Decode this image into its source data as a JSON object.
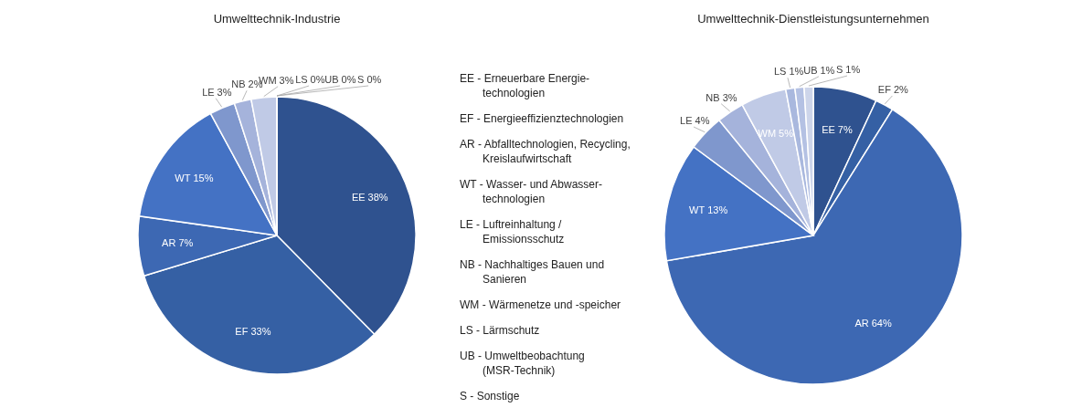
{
  "chart_data": [
    {
      "type": "pie",
      "title": "Umwelttechnik-Industrie",
      "categories": [
        "EE",
        "EF",
        "AR",
        "WT",
        "LE",
        "NB",
        "WM",
        "LS",
        "UB",
        "S"
      ],
      "values": [
        38,
        33,
        7,
        15,
        3,
        2,
        3,
        0,
        0,
        0
      ],
      "colors": [
        "#2f528f",
        "#3560a4",
        "#3d68b3",
        "#4472c4",
        "#7f97cd",
        "#a5b3db",
        "#c0cae6",
        "#a9b8de",
        "#b4c1e3",
        "#cdd5ea"
      ],
      "value_labels": [
        "38%",
        "33%",
        "7%",
        "15%",
        "3%",
        "2%",
        "3%",
        "0%",
        "0%",
        "0%"
      ]
    },
    {
      "type": "other",
      "annotations": [
        "EE - Erneuerbare Energie-\ntechnologien",
        "EF - Energieeffizienztechnologien",
        "AR - Abfalltechnologien, Recycling,\nKreislaufwirtschaft",
        "WT - Wasser- und Abwasser-\ntechnologien",
        "LE - Luftreinhaltung /\nEmissionsschutz",
        "NB - Nachhaltiges Bauen und\nSanieren",
        "WM - Wärmenetze und -speicher",
        "LS - Lärmschutz",
        "UB - Umweltbeobachtung\n(MSR-Technik)",
        "S  - Sonstige"
      ]
    },
    {
      "type": "pie",
      "title": "Umwelttechnik-Dienstleistungsunternehmen",
      "categories": [
        "EE",
        "EF",
        "AR",
        "WT",
        "LE",
        "NB",
        "WM",
        "LS",
        "UB",
        "S"
      ],
      "values": [
        7,
        2,
        64,
        13,
        4,
        3,
        5,
        1,
        1,
        1
      ],
      "colors": [
        "#2f528f",
        "#3560a4",
        "#3d68b3",
        "#4472c4",
        "#7f97cd",
        "#a5b3db",
        "#c0cae6",
        "#a9b8de",
        "#b4c1e3",
        "#cdd5ea"
      ],
      "value_labels": [
        "7%",
        "2%",
        "64%",
        "13%",
        "4%",
        "3%",
        "5%",
        "1%",
        "1%",
        "1%"
      ]
    }
  ]
}
